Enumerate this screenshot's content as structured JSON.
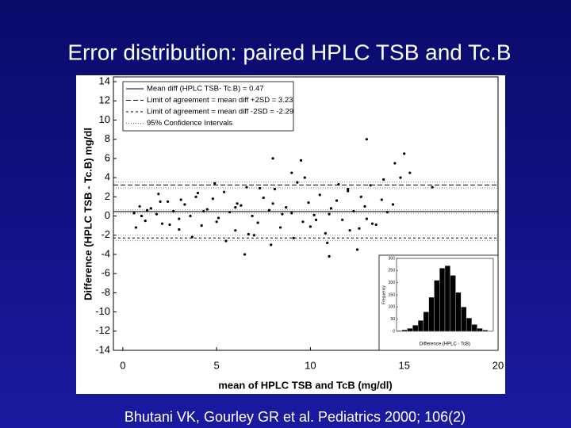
{
  "title": "Error distribution: paired HPLC TSB and Tc.B",
  "citation": "Bhutani VK, Gourley GR et al. Pediatrics 2000; 106(2)",
  "chart_data": [
    {
      "type": "scatter",
      "xlabel": "mean of HPLC TSB and TcB (mg/dl)",
      "ylabel": "Difference (HPLC TSB - Tc.B) mg/dl",
      "xlim": [
        -0.5,
        20
      ],
      "xticks": [
        0,
        5,
        10,
        15,
        20
      ],
      "ylim": [
        -14,
        14.5
      ],
      "yticks": [
        -14,
        -12,
        -10,
        -8,
        -6,
        -4,
        -2,
        0,
        2,
        4,
        6,
        8,
        10,
        12,
        14
      ],
      "color": "#000000",
      "x": [
        0.6,
        0.9,
        1.2,
        1.5,
        1.8,
        2.1,
        2.4,
        2.7,
        3.0,
        3.3,
        3.6,
        3.9,
        4.2,
        4.5,
        4.8,
        5.1,
        5.4,
        5.7,
        6.0,
        6.3,
        6.6,
        6.9,
        7.2,
        7.5,
        7.8,
        8.1,
        8.4,
        8.7,
        9.0,
        9.3,
        9.6,
        9.9,
        10.2,
        10.5,
        10.8,
        11.1,
        11.4,
        11.7,
        12.0,
        12.3,
        12.6,
        12.9,
        13.2,
        13.5,
        13.8,
        14.1,
        0.7,
        1.3,
        1.9,
        2.5,
        3.1,
        3.7,
        4.3,
        4.9,
        5.5,
        6.1,
        6.7,
        7.3,
        7.9,
        8.5,
        9.1,
        9.7,
        10.3,
        10.9,
        11.5,
        12.1,
        12.7,
        13.3,
        13.9,
        14.4,
        1.0,
        2.0,
        3.0,
        4.0,
        5.0,
        6.0,
        7.0,
        8.0,
        9.0,
        10.0,
        11.0,
        12.0,
        13.0,
        8.0,
        13.0,
        14.5,
        15.0,
        15.3,
        16.5,
        14.8,
        12.5,
        11.0,
        6.5,
        9.5
      ],
      "y": [
        0.3,
        1.0,
        -0.5,
        0.8,
        0.2,
        -0.8,
        1.5,
        0.5,
        -0.3,
        1.2,
        0.0,
        2.0,
        -1.0,
        0.7,
        1.8,
        -0.2,
        2.5,
        0.4,
        -1.5,
        1.1,
        3.0,
        0.0,
        -0.7,
        1.9,
        0.6,
        2.8,
        -1.2,
        0.9,
        0.3,
        3.5,
        -0.6,
        1.4,
        0.1,
        2.2,
        -1.8,
        0.8,
        1.6,
        -0.4,
        2.6,
        0.5,
        -1.3,
        1.0,
        3.2,
        -0.9,
        1.7,
        0.4,
        -1.2,
        0.6,
        2.3,
        -0.9,
        1.7,
        -2.2,
        0.5,
        3.4,
        -2.6,
        1.3,
        -1.9,
        2.9,
        -3.0,
        0.2,
        -2.3,
        4.0,
        -0.4,
        -2.8,
        3.3,
        -1.5,
        2.0,
        -0.8,
        3.8,
        1.2,
        0.0,
        1.5,
        -1.4,
        2.4,
        -0.6,
        0.9,
        -2.0,
        1.3,
        4.5,
        -1.1,
        0.2,
        2.8,
        -0.3,
        6.0,
        8.0,
        5.5,
        6.5,
        4.5,
        3.0,
        4.0,
        -3.5,
        -4.2,
        -4.0,
        5.8
      ],
      "reference_lines": [
        {
          "name": "Mean diff (HPLC TSB- Tc.B) = 0.47",
          "value": 0.47,
          "dash": "none"
        },
        {
          "name": "Limit of agreement = mean diff +2SD = 3.23",
          "value": 3.23,
          "dash": "6 3"
        },
        {
          "name": "Limit of agreement = mean diff -2SD = -2.29",
          "value": -2.29,
          "dash": "3 3"
        }
      ],
      "confidence_intervals": {
        "name": "95% Confidence Intervals",
        "values": [
          0.3,
          0.64,
          2.93,
          3.53,
          -2.0,
          -2.58
        ],
        "dash": "1 2"
      }
    },
    {
      "type": "histogram",
      "xlabel": "Difference (HPLC - TcB)",
      "ylabel": "Frequency",
      "bins": [
        -4,
        -3.5,
        -3,
        -2.5,
        -2,
        -1.5,
        -1,
        -0.5,
        0,
        0.5,
        1,
        1.5,
        2,
        2.5,
        3,
        3.5,
        4,
        4.5,
        5
      ],
      "values": [
        3,
        6,
        12,
        25,
        45,
        80,
        140,
        210,
        260,
        270,
        230,
        160,
        100,
        55,
        28,
        12,
        5,
        2
      ],
      "ylim": [
        0,
        300
      ],
      "yticks": [
        0,
        50,
        100,
        150,
        200,
        250,
        300
      ],
      "color": "#000000"
    }
  ]
}
